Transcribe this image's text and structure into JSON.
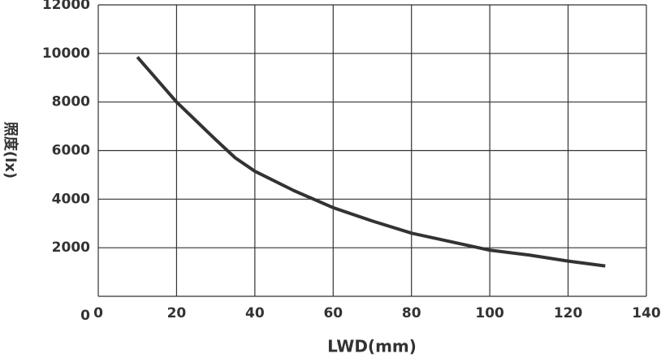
{
  "chart_data": {
    "type": "line",
    "x_label": "LWD(mm)",
    "y_label": "照度(lx)",
    "x": [
      10,
      20,
      30,
      35,
      40,
      50,
      60,
      70,
      80,
      90,
      100,
      110,
      120,
      129.5
    ],
    "series": [
      {
        "name": null,
        "color": "#333333",
        "values": [
          9850,
          8000,
          6450,
          5700,
          5150,
          4350,
          3650,
          3100,
          2600,
          2250,
          1900,
          1700,
          1450,
          1250
        ]
      }
    ],
    "xlim": [
      0,
      140
    ],
    "xticks": [
      0,
      20,
      40,
      60,
      80,
      100,
      120,
      140
    ],
    "ylim": [
      0,
      12000
    ],
    "yticks": [
      0,
      2000,
      4000,
      6000,
      8000,
      10000,
      12000
    ],
    "grid": true
  }
}
